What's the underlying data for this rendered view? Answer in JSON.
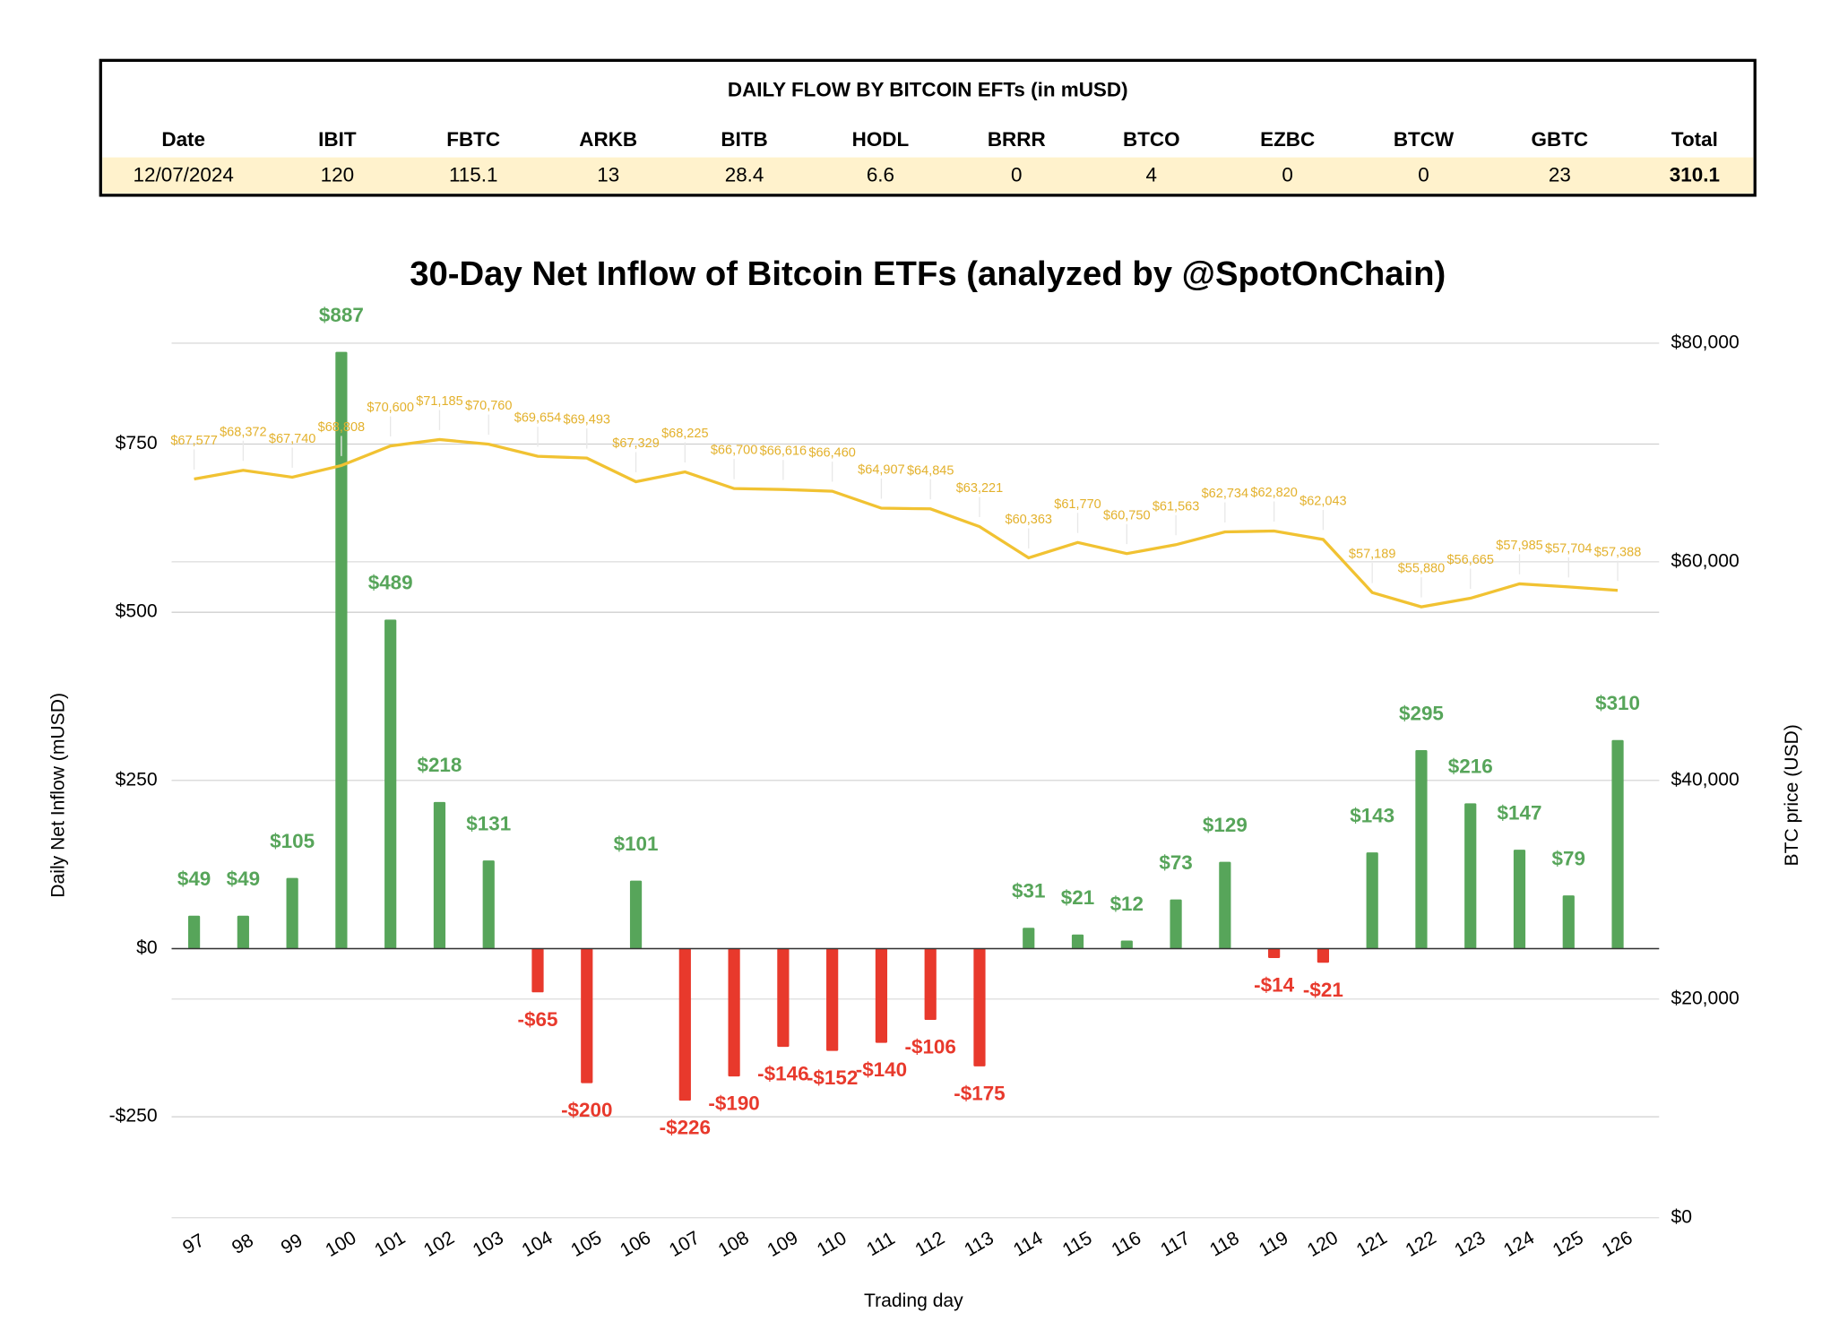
{
  "table": {
    "title": "DAILY FLOW BY BITCOIN EFTs (in mUSD)",
    "columns": [
      "Date",
      "IBIT",
      "FBTC",
      "ARKB",
      "BITB",
      "HODL",
      "BRRR",
      "BTCO",
      "EZBC",
      "BTCW",
      "GBTC",
      "Total"
    ],
    "rows": [
      [
        "12/07/2024",
        120,
        115.1,
        13,
        28.4,
        6.6,
        0,
        4,
        0,
        0,
        23,
        310.1
      ]
    ]
  },
  "chart_data": {
    "type": "bar",
    "title": "30-Day Net Inflow of Bitcoin ETFs (analyzed by @SpotOnChain)",
    "x_label": "Trading day",
    "y_label": "Daily Net Inflow (mUSD)",
    "y2_label": "BTC price (USD)",
    "categories": [
      "97",
      "98",
      "99",
      "100",
      "101",
      "102",
      "103",
      "104",
      "105",
      "106",
      "107",
      "108",
      "109",
      "110",
      "111",
      "112",
      "113",
      "114",
      "115",
      "116",
      "117",
      "118",
      "119",
      "120",
      "121",
      "122",
      "123",
      "124",
      "125",
      "126"
    ],
    "series": [
      {
        "type": "bar",
        "color": "#57a55a",
        "negative_color": "#e8392c",
        "values": [
          49,
          49,
          105,
          887,
          489,
          218,
          131,
          -65,
          -200,
          101,
          -226,
          -190,
          -146,
          -152,
          -140,
          -106,
          -175,
          31,
          21,
          12,
          73,
          129,
          -14,
          -21,
          143,
          295,
          216,
          147,
          79,
          310
        ],
        "value_labels": [
          "$49",
          "$49",
          "$105",
          "$887",
          "$489",
          "$218",
          "$131",
          "-$65",
          "-$200",
          "$101",
          "-$226",
          "-$190",
          "-$146",
          "-$152",
          "-$140",
          "-$106",
          "-$175",
          "$31",
          "$21",
          "$12",
          "$73",
          "$129",
          "-$14",
          "-$21",
          "$143",
          "$295",
          "$216",
          "$147",
          "$79",
          "$310"
        ]
      },
      {
        "type": "line",
        "axis": "y2",
        "color": "#f1c232",
        "values": [
          67577,
          68372,
          67740,
          68808,
          70600,
          71185,
          70760,
          69654,
          69493,
          67329,
          68225,
          66700,
          66616,
          66460,
          64907,
          64845,
          63221,
          60363,
          61770,
          60750,
          61563,
          62734,
          62820,
          62043,
          57189,
          55880,
          56665,
          57985,
          57704,
          57388
        ],
        "value_labels": [
          "$67,577",
          "$68,372",
          "$67,740",
          "$68,808",
          "$70,600",
          "$71,185",
          "$70,760",
          "$69,654",
          "$69,493",
          "$67,329",
          "$68,225",
          "$66,700",
          "$66,616",
          "$66,460",
          "$64,907",
          "$64,845",
          "$63,221",
          "$60,363",
          "$61,770",
          "$60,750",
          "$61,563",
          "$62,734",
          "$62,820",
          "$62,043",
          "$57,189",
          "$55,880",
          "$56,665",
          "$57,985",
          "$57,704",
          "$57,388"
        ]
      }
    ],
    "ylim": [
      -400,
      900
    ],
    "yticks": [
      {
        "value": -250,
        "label": "-$250"
      },
      {
        "value": 0,
        "label": "$0"
      },
      {
        "value": 250,
        "label": "$250"
      },
      {
        "value": 500,
        "label": "$500"
      },
      {
        "value": 750,
        "label": "$750"
      }
    ],
    "y2lim": [
      0,
      80000
    ],
    "y2ticks": [
      {
        "value": 0,
        "label": "$0"
      },
      {
        "value": 20000,
        "label": "$20,000"
      },
      {
        "value": 40000,
        "label": "$40,000"
      },
      {
        "value": 60000,
        "label": "$60,000"
      },
      {
        "value": 80000,
        "label": "$80,000"
      }
    ],
    "grid": true
  }
}
